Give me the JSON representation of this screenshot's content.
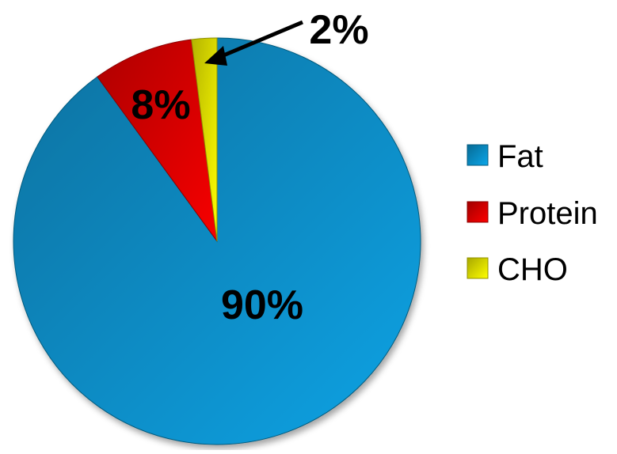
{
  "chart_data": {
    "type": "pie",
    "title": "",
    "categories": [
      "Fat",
      "Protein",
      "CHO"
    ],
    "values": [
      90,
      8,
      2
    ],
    "labels": [
      "90%",
      "8%",
      "2%"
    ],
    "colors": [
      "#0a97d4",
      "#e60000",
      "#f0f000"
    ],
    "start_angle": "12 o'clock",
    "direction": "clockwise",
    "legend_position": "right"
  }
}
